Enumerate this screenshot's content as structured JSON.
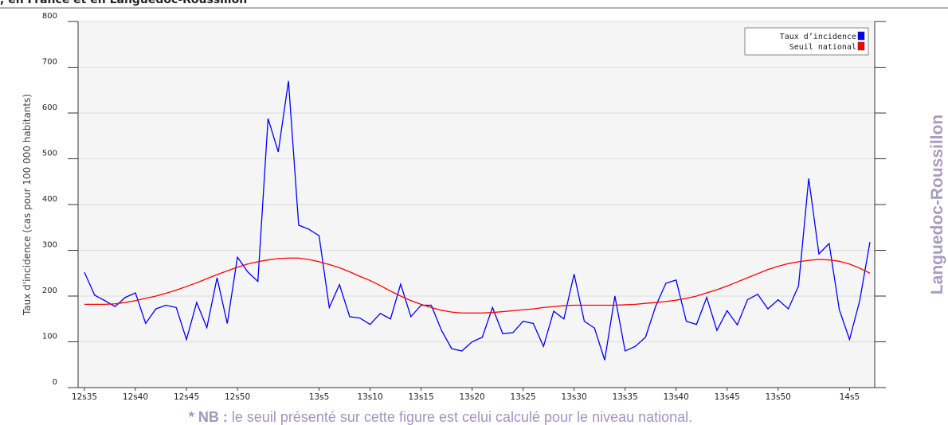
{
  "header": {
    "title": ", en France et en Languedoc-Roussillon"
  },
  "chart_data": {
    "type": "line",
    "y_label": "Taux d'incidence (cas pour 100 000 habitants)",
    "region": "Languedoc-Roussillon",
    "categories": [
      "12s35",
      null,
      null,
      null,
      null,
      "12s40",
      null,
      null,
      null,
      null,
      "12s45",
      null,
      null,
      null,
      null,
      "12s50",
      null,
      null,
      null,
      null,
      null,
      null,
      null,
      "13s5",
      null,
      null,
      null,
      null,
      "13s10",
      null,
      null,
      null,
      null,
      "13s15",
      null,
      null,
      null,
      null,
      "13s20",
      null,
      null,
      null,
      null,
      "13s25",
      null,
      null,
      null,
      null,
      "13s30",
      null,
      null,
      null,
      null,
      "13s35",
      null,
      null,
      null,
      null,
      "13s40",
      null,
      null,
      null,
      null,
      "13s45",
      null,
      null,
      null,
      null,
      "13s50",
      null,
      null,
      null,
      null,
      null,
      null,
      "14s5",
      null,
      null
    ],
    "series": [
      {
        "name": "Taux d’incidence",
        "color": "#0000ff",
        "values": [
          252,
          202,
          190,
          177,
          197,
          207,
          140,
          172,
          180,
          175,
          105,
          186,
          131,
          240,
          140,
          285,
          253,
          232,
          588,
          515,
          670,
          355,
          346,
          332,
          175,
          225,
          155,
          152,
          138,
          162,
          150,
          226,
          155,
          180,
          180,
          125,
          85,
          80,
          100,
          110,
          175,
          118,
          120,
          145,
          140,
          90,
          167,
          150,
          248,
          145,
          130,
          60,
          200,
          80,
          90,
          110,
          178,
          228,
          235,
          145,
          138,
          197,
          125,
          168,
          137,
          192,
          204,
          172,
          192,
          172,
          222,
          457,
          292,
          315,
          170,
          105,
          190,
          318
        ]
      },
      {
        "name": "Seuil national",
        "color": "#ff0000",
        "values": [
          182,
          182,
          182,
          183,
          186,
          190,
          195,
          200,
          206,
          213,
          221,
          229,
          238,
          247,
          255,
          263,
          270,
          275,
          279,
          282,
          283,
          283,
          280,
          275,
          269,
          262,
          253,
          243,
          234,
          223,
          211,
          200,
          190,
          182,
          175,
          169,
          165,
          163,
          163,
          163,
          164,
          166,
          168,
          170,
          172,
          175,
          177,
          179,
          180,
          180,
          180,
          180,
          180,
          181,
          182,
          184,
          186,
          188,
          191,
          195,
          200,
          207,
          214,
          222,
          231,
          240,
          249,
          258,
          265,
          271,
          275,
          278,
          280,
          279,
          276,
          270,
          261,
          250
        ]
      }
    ],
    "ylim": [
      0,
      800
    ],
    "yticks": [
      0,
      100,
      200,
      300,
      400,
      500,
      600,
      700,
      800
    ],
    "grid": true,
    "legend": "upper right"
  },
  "note": {
    "prefix": "* NB :",
    "text": "le seuil présenté sur cette figure est celui calculé pour le niveau national."
  }
}
